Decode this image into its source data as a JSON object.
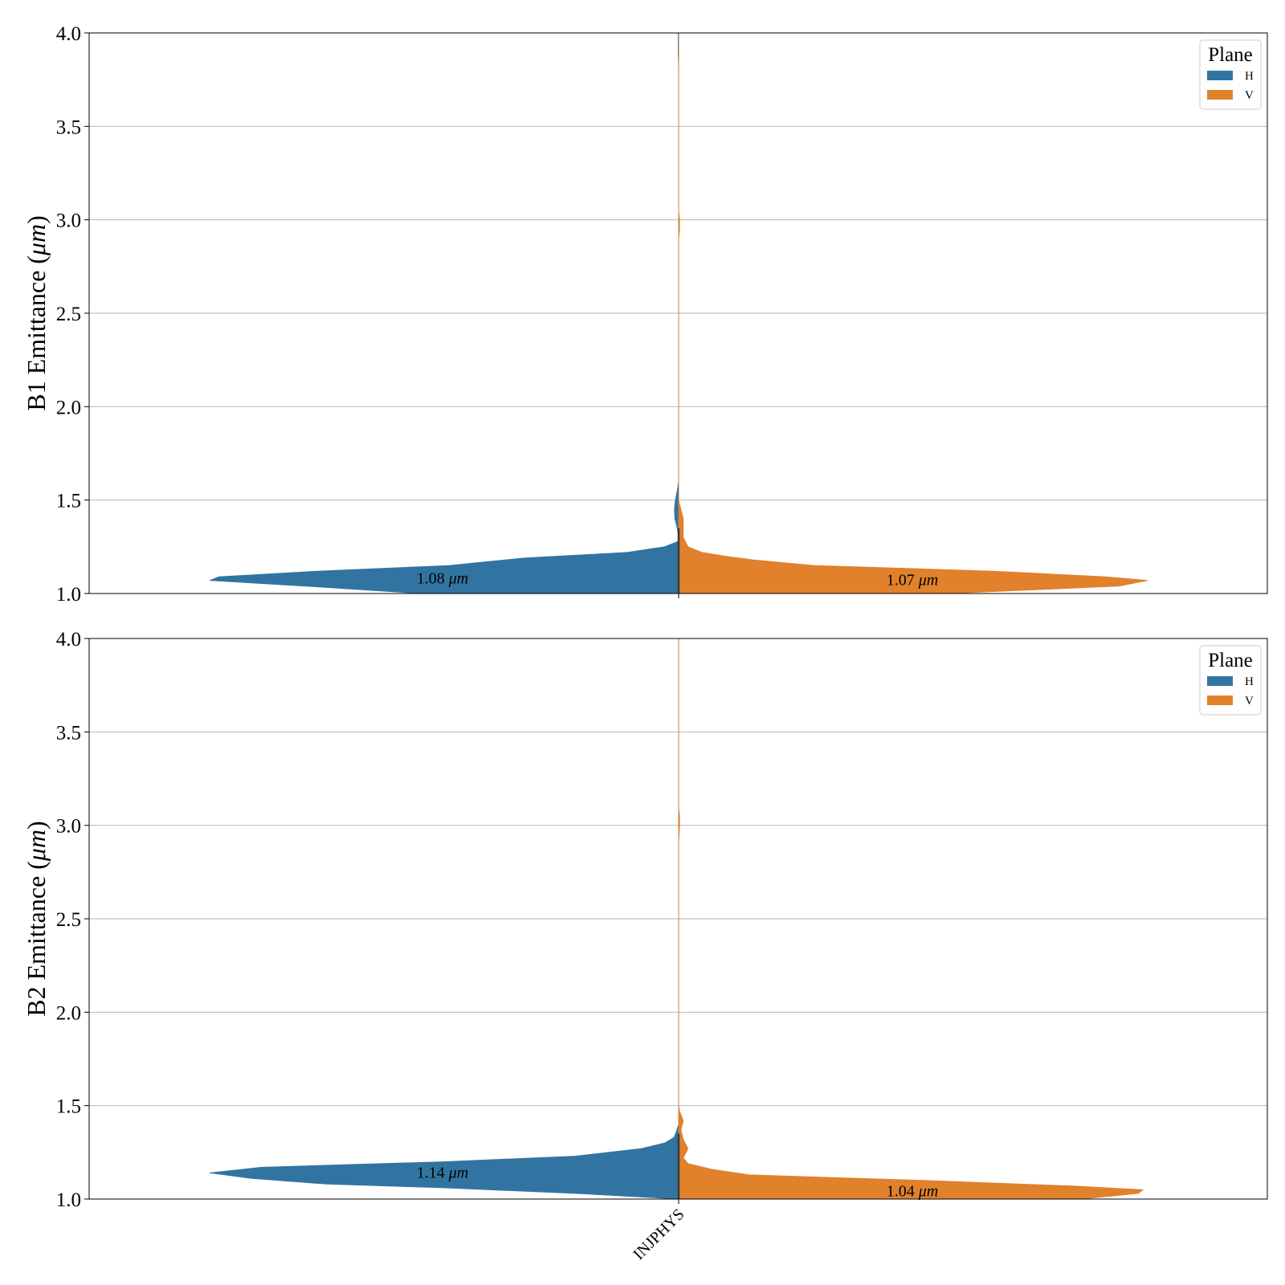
{
  "figure": {
    "colors": {
      "H": "#3274a1",
      "V": "#e1812c",
      "grid": "#b0b0b0",
      "axis": "#000000"
    }
  },
  "chart_data": [
    {
      "type": "violin",
      "ylabel": "B1 Emittance (μm)",
      "ylim": [
        1.0,
        4.0
      ],
      "yticks": [
        "1.0",
        "1.5",
        "2.0",
        "2.5",
        "3.0",
        "3.5",
        "4.0"
      ],
      "grid": true,
      "categories": [
        "INJPHYS"
      ],
      "legend": {
        "title": "Plane",
        "position": "top-right",
        "entries": [
          "H",
          "V"
        ]
      },
      "series": [
        {
          "name": "H",
          "color": "#3274a1",
          "median_label": "1.08 μm",
          "median": 1.08,
          "density": [
            [
              1.0,
              0.55
            ],
            [
              1.04,
              0.8
            ],
            [
              1.07,
              1.0
            ],
            [
              1.09,
              0.98
            ],
            [
              1.12,
              0.77
            ],
            [
              1.15,
              0.49
            ],
            [
              1.19,
              0.33
            ],
            [
              1.22,
              0.11
            ],
            [
              1.25,
              0.03
            ],
            [
              1.28,
              0.0
            ],
            [
              1.3,
              0.0
            ],
            [
              1.35,
              0.003
            ],
            [
              1.4,
              0.008
            ],
            [
              1.45,
              0.009
            ],
            [
              1.5,
              0.007
            ],
            [
              1.55,
              0.003
            ],
            [
              1.6,
              0.0
            ],
            [
              1.8,
              0.0
            ],
            [
              2.5,
              0.0
            ],
            [
              3.8,
              0.0
            ],
            [
              3.9,
              0.001
            ],
            [
              4.0,
              0.001
            ]
          ]
        },
        {
          "name": "V",
          "color": "#e1812c",
          "median_label": "1.07 μm",
          "median": 1.07,
          "density": [
            [
              1.0,
              0.58
            ],
            [
              1.04,
              0.94
            ],
            [
              1.07,
              1.0
            ],
            [
              1.09,
              0.91
            ],
            [
              1.12,
              0.67
            ],
            [
              1.15,
              0.29
            ],
            [
              1.18,
              0.16
            ],
            [
              1.2,
              0.1
            ],
            [
              1.22,
              0.05
            ],
            [
              1.25,
              0.02
            ],
            [
              1.3,
              0.01
            ],
            [
              1.35,
              0.01
            ],
            [
              1.4,
              0.01
            ],
            [
              1.45,
              0.005
            ],
            [
              1.5,
              0.0
            ],
            [
              1.6,
              0.0
            ],
            [
              2.5,
              0.0
            ],
            [
              2.9,
              0.0
            ],
            [
              2.95,
              0.002
            ],
            [
              3.0,
              0.002
            ],
            [
              3.05,
              0.0
            ],
            [
              4.0,
              0.0
            ]
          ]
        }
      ]
    },
    {
      "type": "violin",
      "ylabel": "B2 Emittance (μm)",
      "ylim": [
        1.0,
        4.0
      ],
      "yticks": [
        "1.0",
        "1.5",
        "2.0",
        "2.5",
        "3.0",
        "3.5",
        "4.0"
      ],
      "grid": true,
      "categories": [
        "INJPHYS"
      ],
      "legend": {
        "title": "Plane",
        "position": "top-right",
        "entries": [
          "H",
          "V"
        ]
      },
      "series": [
        {
          "name": "H",
          "color": "#3274a1",
          "median_label": "1.14 μm",
          "median": 1.14,
          "density": [
            [
              1.0,
              0.0
            ],
            [
              1.03,
              0.22
            ],
            [
              1.06,
              0.5
            ],
            [
              1.08,
              0.75
            ],
            [
              1.11,
              0.91
            ],
            [
              1.14,
              1.0
            ],
            [
              1.17,
              0.89
            ],
            [
              1.2,
              0.5
            ],
            [
              1.23,
              0.22
            ],
            [
              1.27,
              0.08
            ],
            [
              1.3,
              0.03
            ],
            [
              1.33,
              0.01
            ],
            [
              1.36,
              0.005
            ],
            [
              1.4,
              0.0
            ],
            [
              1.5,
              0.0
            ],
            [
              1.6,
              0.0
            ],
            [
              1.7,
              0.0
            ],
            [
              2.5,
              0.0
            ],
            [
              4.0,
              0.0
            ]
          ]
        },
        {
          "name": "V",
          "color": "#e1812c",
          "median_label": "1.04 μm",
          "median": 1.04,
          "density": [
            [
              1.0,
              0.86
            ],
            [
              1.03,
              0.98
            ],
            [
              1.05,
              0.99
            ],
            [
              1.07,
              0.84
            ],
            [
              1.1,
              0.52
            ],
            [
              1.13,
              0.15
            ],
            [
              1.16,
              0.07
            ],
            [
              1.19,
              0.02
            ],
            [
              1.22,
              0.01
            ],
            [
              1.27,
              0.02
            ],
            [
              1.32,
              0.01
            ],
            [
              1.37,
              0.005
            ],
            [
              1.42,
              0.01
            ],
            [
              1.47,
              0.002
            ],
            [
              1.5,
              0.0
            ],
            [
              2.9,
              0.0
            ],
            [
              3.0,
              0.002
            ],
            [
              3.05,
              0.002
            ],
            [
              3.1,
              0.0
            ],
            [
              4.0,
              0.0
            ]
          ]
        }
      ]
    }
  ]
}
